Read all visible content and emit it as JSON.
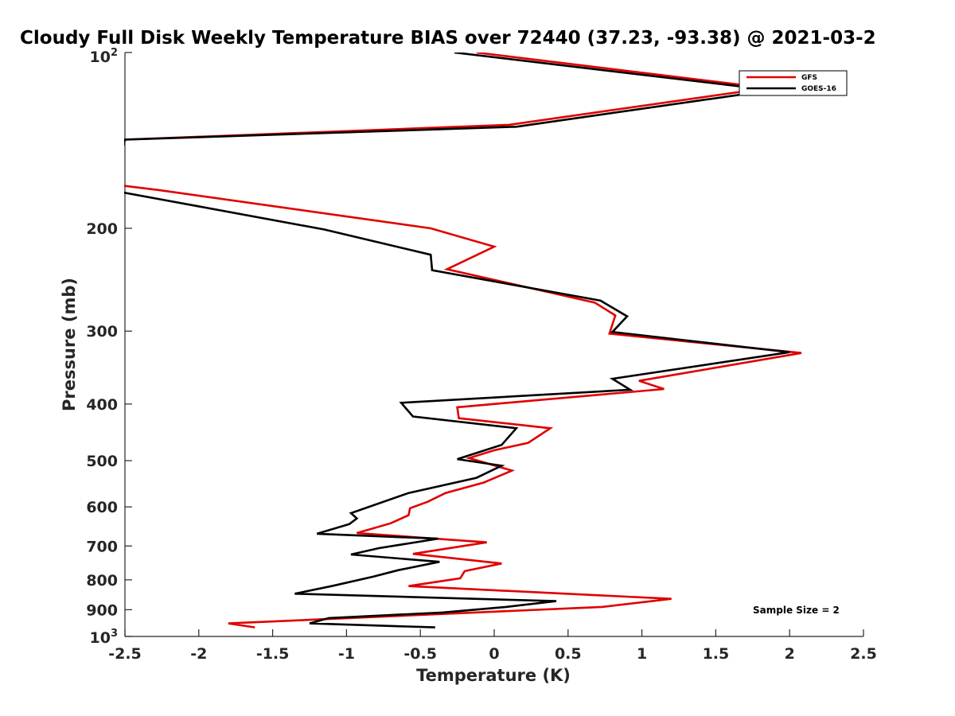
{
  "chart_data": {
    "type": "line",
    "title": "Cloudy Full Disk Weekly Temperature BIAS over 72440 (37.23, -93.38) @ 2021-03-2",
    "xlabel": "Temperature (K)",
    "ylabel": "Pressure (mb)",
    "xlim": [
      -2.5,
      2.5
    ],
    "ylim": [
      100,
      1000
    ],
    "y_scale": "log",
    "y_reversed": true,
    "x_ticks": [
      -2.5,
      -2,
      -1.5,
      -1,
      -0.5,
      0,
      0.5,
      1,
      1.5,
      2,
      2.5
    ],
    "x_tick_labels": [
      "-2.5",
      "-2",
      "-1.5",
      "-1",
      "-0.5",
      "0",
      "0.5",
      "1",
      "1.5",
      "2",
      "2.5"
    ],
    "y_ticks": [
      200,
      300,
      400,
      500,
      600,
      700,
      800,
      900
    ],
    "y_tick_labels": [
      "200",
      "300",
      "400",
      "500",
      "600",
      "700",
      "800",
      "900"
    ],
    "y_end_labels": {
      "top_base": "10",
      "top_exp": "2",
      "bottom_base": "10",
      "bottom_exp": "3"
    },
    "legend_position": "top-right",
    "annotation": "Sample Size = 2",
    "series": [
      {
        "name": "GFS",
        "color": "#e00000",
        "points": [
          [
            -0.12,
            100
          ],
          [
            1.85,
            115
          ],
          [
            0.1,
            133
          ],
          [
            -2.5,
            141
          ],
          [
            -2.6,
            168
          ],
          [
            -2.27,
            172
          ],
          [
            -0.43,
            200
          ],
          [
            0.0,
            215
          ],
          [
            -0.32,
            235
          ],
          [
            0.68,
            268
          ],
          [
            0.82,
            282
          ],
          [
            0.78,
            303
          ],
          [
            2.08,
            327
          ],
          [
            0.98,
            365
          ],
          [
            1.15,
            377
          ],
          [
            -0.25,
            405
          ],
          [
            -0.24,
            423
          ],
          [
            0.38,
            440
          ],
          [
            0.23,
            466
          ],
          [
            0.0,
            480
          ],
          [
            -0.17,
            495
          ],
          [
            0.12,
            520
          ],
          [
            -0.07,
            545
          ],
          [
            -0.33,
            568
          ],
          [
            -0.45,
            588
          ],
          [
            -0.57,
            603
          ],
          [
            -0.58,
            620
          ],
          [
            -0.7,
            640
          ],
          [
            -0.93,
            665
          ],
          [
            -0.05,
            690
          ],
          [
            -0.55,
            722
          ],
          [
            0.05,
            750
          ],
          [
            -0.2,
            773
          ],
          [
            -0.23,
            795
          ],
          [
            -0.58,
            820
          ],
          [
            1.2,
            862
          ],
          [
            0.73,
            890
          ],
          [
            -1.8,
            950
          ],
          [
            -1.62,
            965
          ]
        ]
      },
      {
        "name": "GOES-16",
        "color": "#000000",
        "points": [
          [
            -0.27,
            100
          ],
          [
            1.88,
            116
          ],
          [
            0.15,
            134
          ],
          [
            -2.5,
            141
          ],
          [
            -2.6,
            172
          ],
          [
            -1.15,
            201
          ],
          [
            -0.43,
            222
          ],
          [
            -0.42,
            236
          ],
          [
            0.72,
            266
          ],
          [
            0.9,
            283
          ],
          [
            0.8,
            301
          ],
          [
            2.0,
            326
          ],
          [
            0.8,
            362
          ],
          [
            0.92,
            378
          ],
          [
            -0.63,
            398
          ],
          [
            -0.55,
            420
          ],
          [
            0.15,
            440
          ],
          [
            0.05,
            470
          ],
          [
            -0.25,
            497
          ],
          [
            0.05,
            510
          ],
          [
            -0.12,
            535
          ],
          [
            -0.58,
            568
          ],
          [
            -0.97,
            615
          ],
          [
            -0.93,
            628
          ],
          [
            -0.98,
            642
          ],
          [
            -1.2,
            667
          ],
          [
            -0.38,
            680
          ],
          [
            -0.78,
            706
          ],
          [
            -0.97,
            724
          ],
          [
            -0.37,
            745
          ],
          [
            -0.65,
            770
          ],
          [
            -0.82,
            790
          ],
          [
            -1.1,
            820
          ],
          [
            -1.35,
            845
          ],
          [
            0.42,
            870
          ],
          [
            0.08,
            890
          ],
          [
            -0.35,
            910
          ],
          [
            -1.12,
            930
          ],
          [
            -1.25,
            950
          ],
          [
            -0.4,
            965
          ]
        ]
      }
    ]
  }
}
